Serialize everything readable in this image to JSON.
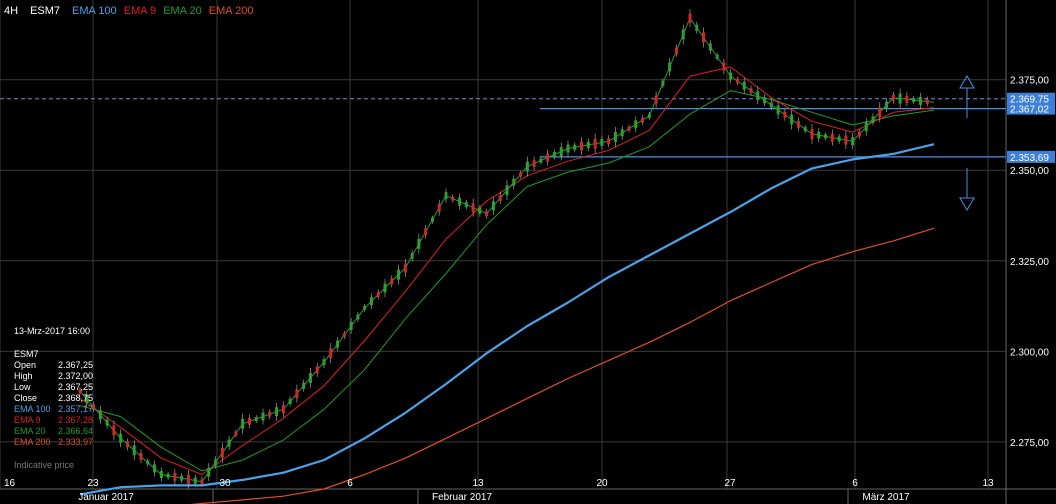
{
  "header": {
    "timeframe": "4H",
    "symbol": "ESM7",
    "legend": [
      {
        "label": "EMA 100",
        "color": "#4aa3e8"
      },
      {
        "label": "EMA 9",
        "color": "#e02020"
      },
      {
        "label": "EMA 20",
        "color": "#1e9e1e"
      },
      {
        "label": "EMA 200",
        "color": "#e0501a"
      }
    ]
  },
  "info_panel": {
    "timestamp": "13-Mrz-2017 16:00",
    "symbol": "ESM7",
    "rows": [
      {
        "label": "Open",
        "value": "2.367,25",
        "color": "#ffffff"
      },
      {
        "label": "High",
        "value": "2.372,00",
        "color": "#ffffff"
      },
      {
        "label": "Low",
        "value": "2.367,25",
        "color": "#ffffff"
      },
      {
        "label": "Close",
        "value": "2.368,75",
        "color": "#ffffff"
      },
      {
        "label": "EMA 100",
        "value": "2.357,17",
        "color": "#4aa3e8"
      },
      {
        "label": "EMA 9",
        "value": "2.367,28",
        "color": "#e02020"
      },
      {
        "label": "EMA 20",
        "value": "2.366,64",
        "color": "#1e9e1e"
      },
      {
        "label": "EMA 200",
        "value": "2.333,97",
        "color": "#e0501a"
      }
    ],
    "indicative": "Indicative price"
  },
  "price_labels": {
    "current": "2.369,75",
    "upper_line": "2.367,02",
    "lower_line": "2.353,69"
  },
  "chart_data": {
    "type": "line",
    "title": "",
    "ylim": [
      2262,
      2397
    ],
    "y_ticks": [
      {
        "value": 2375,
        "label": "2.375,00"
      },
      {
        "value": 2350,
        "label": "2.350,00"
      },
      {
        "value": 2325,
        "label": "2.325,00"
      },
      {
        "value": 2300,
        "label": "2.300,00"
      },
      {
        "value": 2275,
        "label": "2.275,00"
      }
    ],
    "x_ticks": [
      "16",
      "23",
      "30",
      "6",
      "13",
      "20",
      "27",
      "6",
      "13"
    ],
    "month_labels": [
      "Januar 2017",
      "Februar 2017",
      "März 2017"
    ],
    "horizontal_lines": [
      2369.75,
      2367.02,
      2353.69
    ],
    "series": [
      {
        "name": "EMA 100",
        "color": "#4aa3e8",
        "values": [
          2260.5,
          2262.5,
          2263.0,
          2263.0,
          2264.5,
          2266.5,
          2270.0,
          2276.0,
          2283.0,
          2291.0,
          2299.5,
          2307.0,
          2313.5,
          2320.5,
          2326.5,
          2332.5,
          2338.5,
          2345.0,
          2350.5,
          2353.0,
          2354.5,
          2357.2
        ]
      },
      {
        "name": "EMA 200",
        "color": "#e0501a",
        "values": [
          2255.0,
          2256.0,
          2257.0,
          2258.0,
          2259.0,
          2260.0,
          2262.0,
          2266.0,
          2270.5,
          2276.0,
          2281.5,
          2287.0,
          2292.5,
          2297.5,
          2302.5,
          2308.0,
          2314.0,
          2319.0,
          2324.0,
          2327.5,
          2330.5,
          2334.0
        ]
      },
      {
        "name": "EMA 20",
        "color": "#1e9e1e",
        "values": [
          2285.0,
          2282.0,
          2273.5,
          2267.0,
          2270.0,
          2275.5,
          2284.0,
          2295.0,
          2309.0,
          2321.5,
          2335.0,
          2345.5,
          2349.5,
          2352.0,
          2356.5,
          2365.5,
          2372.0,
          2369.5,
          2366.0,
          2362.5,
          2365.0,
          2366.6
        ]
      },
      {
        "name": "EMA 9",
        "color": "#e02020",
        "values": [
          2287.0,
          2279.0,
          2270.5,
          2266.0,
          2274.0,
          2281.5,
          2290.5,
          2303.0,
          2316.5,
          2331.0,
          2341.5,
          2348.5,
          2352.5,
          2355.5,
          2361.0,
          2376.0,
          2378.5,
          2370.0,
          2363.5,
          2360.5,
          2366.0,
          2367.3
        ]
      },
      {
        "name": "Price",
        "color": "#2a9a2a",
        "values": [
          2289.0,
          2276.0,
          2266.0,
          2264.0,
          2280.0,
          2284.0,
          2297.0,
          2312.0,
          2323.0,
          2343.0,
          2338.0,
          2351.0,
          2356.0,
          2358.0,
          2365.0,
          2392.0,
          2376.0,
          2368.0,
          2360.0,
          2358.0,
          2370.0,
          2368.75
        ]
      }
    ]
  }
}
